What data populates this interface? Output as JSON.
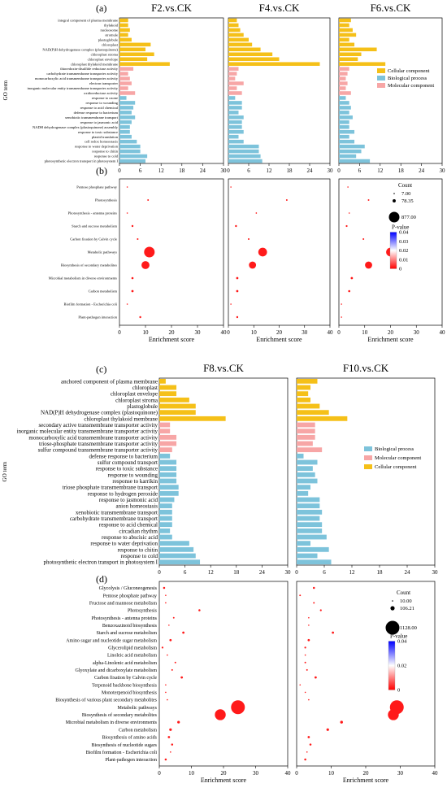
{
  "panel_letters": [
    "(a)",
    "(b)",
    "(c)",
    "(d)"
  ],
  "axis_labels": {
    "go_term": "GO term",
    "enrichment_score": "Enrichment score"
  },
  "colors": {
    "cellular_component": "#f5c018",
    "biological_process": "#7dc3db",
    "molecular_component": "#f7a6a6",
    "pvalue_high": "#0000ff",
    "pvalue_mid": "#ffffff",
    "pvalue_low": "#ff0000"
  },
  "chart_data": [
    {
      "type": "bar",
      "panel": "(a)",
      "orientation": "horizontal",
      "xlim": [
        0,
        30
      ],
      "xticks": [
        0,
        6,
        12,
        18,
        24,
        30
      ],
      "ylabel": "GO term",
      "categories": [
        "integral component of plasma membrane",
        "thylakoid",
        "nucleosome",
        "stromule",
        "plastoglobule",
        "chloroplast",
        "NAD(P)H dehydrogenase complex (plastoquinone)",
        "chloroplast stroma",
        "chloroplast envelope",
        "chloroplast thylakoid membrane",
        "thioredoxin-disulfide reductase activity",
        "carbohydrate transmembrane transporter activity",
        "monocarboxylic acid transmembrane transporter activity",
        "electron transporter",
        "inorganic molecular entity transmembrane transporter activity",
        "oxidoreductase activity",
        "response to ozone",
        "response to wounding",
        "response to acid chemical",
        "defense response to bacterium",
        "xenobiotic transmembrane transport",
        "response to jasmonic acid",
        "NADH dehydrogenase complex (plastoquinone) assembly",
        "response to toxic substance",
        "plastid translation",
        "cell redox homeostasis",
        "response to water deprivation",
        "response to chitin",
        "response to cold",
        "photosynthetic electron transport in photosystem I"
      ],
      "category_classes": [
        "Cellular component",
        "Cellular component",
        "Cellular component",
        "Cellular component",
        "Cellular component",
        "Cellular component",
        "Cellular component",
        "Cellular component",
        "Cellular component",
        "Cellular component",
        "Molecular component",
        "Molecular component",
        "Molecular component",
        "Molecular component",
        "Molecular component",
        "Molecular component",
        "Biological process",
        "Biological process",
        "Biological process",
        "Biological process",
        "Biological process",
        "Biological process",
        "Biological process",
        "Biological process",
        "Biological process",
        "Biological process",
        "Biological process",
        "Biological process",
        "Biological process",
        "Biological process"
      ],
      "legend": [
        "Cellular component",
        "Biological process",
        "Molecular component"
      ],
      "legend_placement": "right",
      "series": [
        {
          "name": "F2.vs.CK",
          "values": [
            2.5,
            2.5,
            3,
            2.5,
            3.5,
            9,
            7.5,
            10,
            8,
            14.5,
            4,
            2.5,
            3,
            3.5,
            2.5,
            4.5,
            2,
            4.5,
            4,
            3.5,
            4.5,
            3.5,
            3,
            3,
            3.5,
            5,
            6,
            6,
            8,
            7.5
          ]
        },
        {
          "name": "F4.vs.CK",
          "values": [
            2.5,
            3,
            3.5,
            4.5,
            6,
            7,
            9.5,
            13,
            15,
            27,
            3,
            2.5,
            2,
            4.5,
            2.5,
            4,
            2,
            4,
            4,
            3,
            4.5,
            4,
            4,
            4.5,
            3,
            4.5,
            9,
            9,
            9.5,
            10
          ]
        },
        {
          "name": "F6.vs.CK",
          "values": [
            3.5,
            3,
            4,
            5,
            3,
            4.5,
            11,
            6.5,
            5.5,
            13.5,
            3,
            2.5,
            2,
            2.5,
            2,
            3.5,
            2,
            3,
            3.5,
            3,
            4,
            3,
            3,
            4.5,
            3,
            4.5,
            7.5,
            6.5,
            5,
            9
          ]
        }
      ]
    },
    {
      "type": "scatter",
      "panel": "(b)",
      "xlim": [
        0,
        40
      ],
      "xticks": [
        0,
        10,
        20,
        30,
        40
      ],
      "xlabel": "Enrichment score",
      "categories": [
        "Pentose phosphate pathway",
        "Photosynthesis",
        "Photosynthesis - antenna proteins",
        "Starch and sucrose metabolism",
        "Carbon fixation by Calvin cycle",
        "Metabolic pathways",
        "Biosynthesis of secondary metabolites",
        "Microbial metabolism in diverse environments",
        "Carbon metabolism",
        "Biofilm formation - Escherichia coli",
        "Plant-pathogen interaction"
      ],
      "size_legend": {
        "title": "Count",
        "values": [
          7.0,
          78.35,
          877.0
        ],
        "labels": [
          "7.00",
          "78.35",
          "877.00"
        ]
      },
      "color_legend": {
        "title": "P-value",
        "ticks": [
          0.04,
          0.03,
          0.02,
          0.01,
          0
        ],
        "tick_labels": [
          "0.04",
          "0.03",
          "0.02",
          "0.01",
          "0"
        ]
      },
      "series": [
        {
          "name": "F2.vs.CK",
          "x": [
            3,
            11,
            3,
            5,
            7,
            11.5,
            10,
            5,
            5,
            3,
            8
          ],
          "size": [
            12,
            20,
            12,
            30,
            22,
            877,
            500,
            35,
            40,
            9,
            30
          ]
        },
        {
          "name": "F4.vs.CK",
          "x": [
            1,
            23,
            11,
            3,
            8,
            13.5,
            9.5,
            3.5,
            3.5,
            1,
            3.5
          ],
          "size": [
            7,
            20,
            15,
            30,
            22,
            600,
            400,
            40,
            40,
            7,
            30
          ]
        },
        {
          "name": "F6.vs.CK",
          "x": [
            3.5,
            11.5,
            4,
            3,
            9.5,
            20,
            11.5,
            5,
            4,
            1,
            1
          ],
          "size": [
            12,
            20,
            10,
            25,
            22,
            600,
            400,
            40,
            35,
            7,
            7
          ]
        }
      ]
    },
    {
      "type": "bar",
      "panel": "(c)",
      "orientation": "horizontal",
      "xlim": [
        0,
        30
      ],
      "xticks": [
        0,
        6,
        12,
        18,
        24,
        30
      ],
      "ylabel": "GO term",
      "categories": [
        "anchored component of plasma membrane",
        "chloroplast",
        "chloroplast envelope",
        "chloroplast stroma",
        "plastoglobule",
        "NAD(P)H dehydrogenase complex (plastoquinone)",
        "chloroplast thylakoid membrane",
        "secondary active transmembrane transporter activity",
        "inorganic molecular entity transmembrane transporter activity",
        "monocarboxylic acid transmembrane transporter activity",
        "triose-phosphate transmembrane transporter activity",
        "sulfur compound transmembrane transporter activity",
        "defense response to bacterium",
        "sulfur compound transport",
        "response to toxic substance",
        "response to wounding",
        "response to karrikin",
        "triose phosphate transmembrane transport",
        "response to hydrogen peroxide",
        "response to jasmonic acid",
        "anion homeostasis",
        "xenobiotic transmembrane transport",
        "carbohydrate transmembrane transport",
        "response to acid chemical",
        "circadian rhythm",
        "response to abscisic acid",
        "response to water deprivation",
        "response to chitin",
        "response to cold",
        "photosynthetic electron transport in photosystem I"
      ],
      "category_classes": [
        "Cellular component",
        "Cellular component",
        "Cellular component",
        "Cellular component",
        "Cellular component",
        "Cellular component",
        "Cellular component",
        "Molecular component",
        "Molecular component",
        "Molecular component",
        "Molecular component",
        "Molecular component",
        "Biological process",
        "Biological process",
        "Biological process",
        "Biological process",
        "Biological process",
        "Biological process",
        "Biological process",
        "Biological process",
        "Biological process",
        "Biological process",
        "Biological process",
        "Biological process",
        "Biological process",
        "Biological process",
        "Biological process",
        "Biological process",
        "Biological process",
        "Biological process"
      ],
      "legend": [
        "Biological process",
        "Molecular component",
        "Cellular component"
      ],
      "legend_placement": "right",
      "series": [
        {
          "name": "F8.vs.CK",
          "values": [
            1.5,
            4,
            4,
            7,
            8.5,
            8.5,
            15.5,
            2.5,
            2.5,
            4,
            4,
            3,
            2.5,
            4,
            4,
            4,
            4,
            4.5,
            4.5,
            3.5,
            3,
            3,
            3,
            3,
            2.5,
            3,
            7,
            8,
            8.5,
            9.5
          ]
        },
        {
          "name": "F10.vs.CK",
          "values": [
            4.5,
            3,
            2.5,
            3,
            5,
            7,
            11,
            4,
            4,
            4,
            3.5,
            5.5,
            1.5,
            4.5,
            3.5,
            4,
            4.5,
            3,
            2.5,
            5,
            5,
            5.5,
            5,
            5.5,
            5.5,
            6.5,
            3,
            7,
            4.5,
            7.5
          ]
        }
      ]
    },
    {
      "type": "scatter",
      "panel": "(d)",
      "xlim": [
        0,
        40
      ],
      "xticks": [
        0,
        10,
        20,
        30,
        40
      ],
      "xlabel": "Enrichment score",
      "categories": [
        "Glycolysis / Gluconeogenesis",
        "Pentose phosphate pathway",
        "Fructose and mannose metabolism",
        "Photosynthesis",
        "Photosynthesis - antenna proteins",
        "Benzoxazinoid biosynthesis",
        "Starch and sucrose metabolism",
        "Amino sugar and nucleotide sugar metabolism",
        "Glycerolipid metabolism",
        "Linoleic acid metabolism",
        "alpha-Linolenic acid metabolism",
        "Glyoxylate and dicarboxylate metabolism",
        "Carbon fixation by Calvin cycle",
        "Terpenoid backbone biosynthesis",
        "Monoterpenoid biosynthesis",
        "Biosynthesis of various plant secondary metabolites",
        "Metabolic pathways",
        "Biosynthesis of secondary metabolites",
        "Microbial metabolism in diverse environments",
        "Carbon metabolism",
        "Biosynthesis of amino acids",
        "Biosynthesis of nucleotide sugars",
        "Biofilm formation - Escherichia coli",
        "Plant-pathogen interaction"
      ],
      "size_legend": {
        "title": "Count",
        "values": [
          10.0,
          106.21,
          1128.0
        ],
        "labels": [
          "10.00",
          "106.21",
          "1128.00"
        ]
      },
      "color_legend": {
        "title": "P-value",
        "ticks": [
          0.04,
          0.02,
          0
        ],
        "tick_labels": [
          "0.04",
          "0.02",
          "0"
        ]
      },
      "series": [
        {
          "name": "F8.vs.CK",
          "x": [
            1.5,
            2,
            2,
            12.5,
            4.5,
            3,
            7.5,
            3.5,
            1,
            2.5,
            5,
            4,
            7,
            2,
            2,
            2.5,
            24.5,
            19,
            6,
            3.5,
            3,
            4,
            3.5,
            2
          ],
          "size": [
            25,
            10,
            10,
            25,
            15,
            10,
            30,
            30,
            20,
            10,
            15,
            15,
            30,
            10,
            10,
            10,
            1128,
            700,
            40,
            40,
            30,
            25,
            10,
            25
          ]
        },
        {
          "name": "F10.vs.CK",
          "x": [
            5,
            1,
            5,
            7,
            3.5,
            3.5,
            10.5,
            3.5,
            2.5,
            2.5,
            2.5,
            3,
            5.5,
            1,
            2.5,
            3.5,
            29,
            28,
            13,
            9,
            3.5,
            4,
            3,
            2.5
          ],
          "size": [
            25,
            15,
            15,
            20,
            10,
            10,
            30,
            30,
            20,
            10,
            15,
            15,
            30,
            10,
            10,
            10,
            1128,
            700,
            45,
            40,
            30,
            25,
            10,
            25
          ]
        }
      ]
    }
  ]
}
